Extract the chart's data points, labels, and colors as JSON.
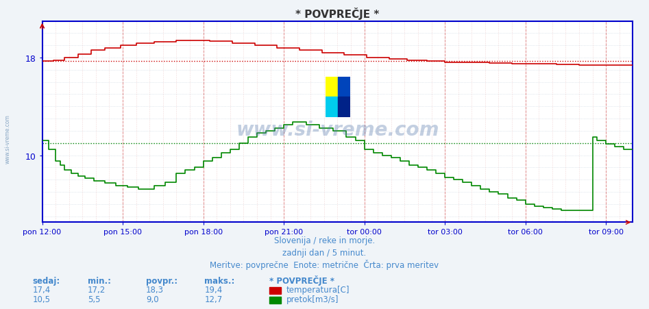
{
  "title": "* POVPREČJE *",
  "bg_color": "#f0f4f8",
  "plot_bg_color": "#ffffff",
  "x_tick_labels": [
    "pon 12:00",
    "pon 15:00",
    "pon 18:00",
    "pon 21:00",
    "tor 00:00",
    "tor 03:00",
    "tor 06:00",
    "tor 09:00"
  ],
  "x_ticks_idx": [
    0,
    36,
    72,
    108,
    144,
    180,
    216,
    252
  ],
  "total_points": 265,
  "ylim_min": 4.5,
  "ylim_max": 21.0,
  "y_label_ticks": [
    10,
    18
  ],
  "temp_avg": 17.7,
  "flow_avg": 11.0,
  "temp_color": "#cc0000",
  "flow_color": "#008800",
  "subtitle1": "Slovenija / reke in morje.",
  "subtitle2": "zadnji dan / 5 minut.",
  "subtitle3": "Meritve: povprečne  Enote: metrične  Črta: prva meritev",
  "legend_title": "* POVPREČJE *",
  "sedaj_label": "sedaj:",
  "min_label": "min.:",
  "povpr_label": "povpr.:",
  "maks_label": "maks.:",
  "temp_sedaj": "17,4",
  "temp_min": "17,2",
  "temp_povpr": "18,3",
  "temp_maks": "19,4",
  "flow_sedaj": "10,5",
  "flow_min": "5,5",
  "flow_povpr": "9,0",
  "flow_maks": "12,7",
  "temp_label": "temperatura[C]",
  "flow_label": "pretok[m3/s]",
  "watermark": "www.si-vreme.com",
  "left_label": "www.si-vreme.com",
  "text_color": "#4488cc",
  "axis_color": "#0000cc",
  "grid_h_color": "#c8d4e0",
  "grid_v_color": "#e8a0a0",
  "avg_temp_line_color": "#cc0000",
  "avg_flow_line_color": "#008800"
}
